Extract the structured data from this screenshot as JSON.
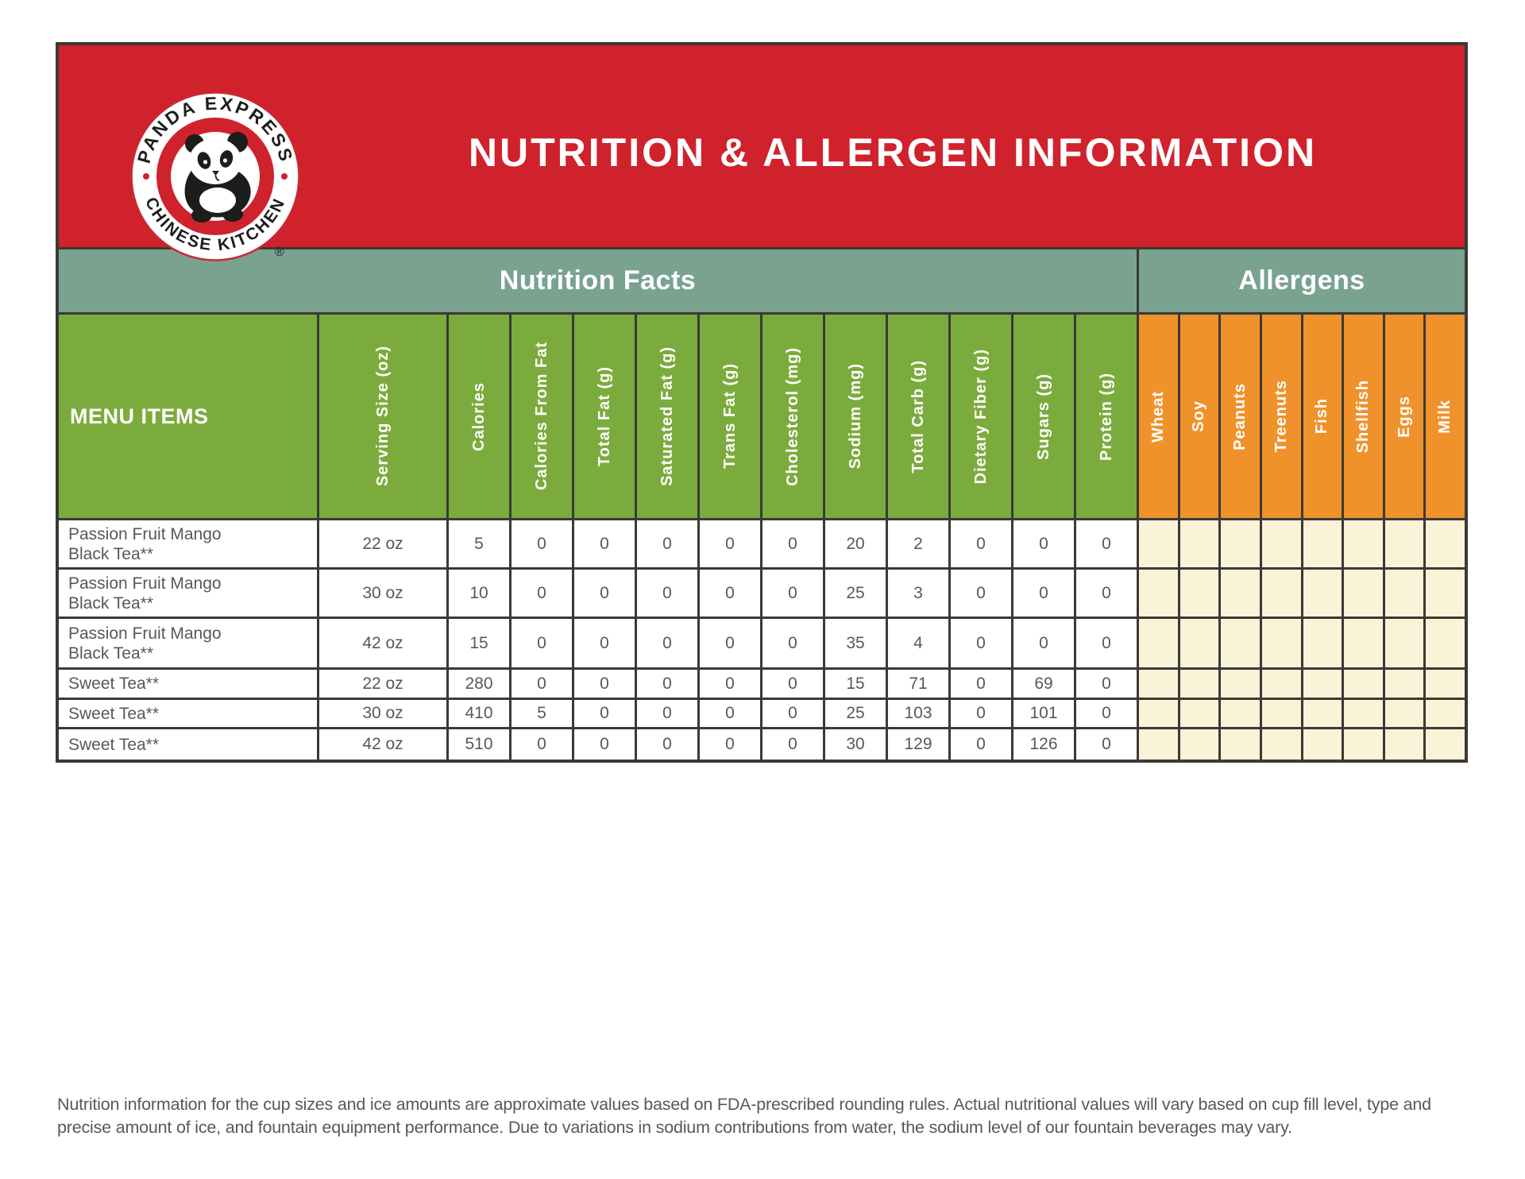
{
  "header": {
    "title": "NUTRITION & ALLERGEN INFORMATION"
  },
  "logo": {
    "top_text": "PANDA EXPRESS",
    "bottom_text": "CHINESE KITCHEN",
    "registered_mark": "®"
  },
  "sections": {
    "nutrition_label": "Nutrition Facts",
    "allergens_label": "Allergens"
  },
  "table": {
    "menu_items_header": "MENU ITEMS",
    "nutrition_columns": [
      "Serving Size (oz)",
      "Calories",
      "Calories From Fat",
      "Total Fat (g)",
      "Saturated Fat (g)",
      "Trans Fat (g)",
      "Cholesterol (mg)",
      "Sodium (mg)",
      "Total Carb (g)",
      "Dietary Fiber (g)",
      "Sugars (g)",
      "Protein (g)"
    ],
    "allergen_columns": [
      "Wheat",
      "Soy",
      "Peanuts",
      "Treenuts",
      "Fish",
      "Shellfish",
      "Eggs",
      "Milk"
    ],
    "rows": [
      {
        "name": "Passion Fruit Mango\nBlack Tea**",
        "values": [
          "22 oz",
          "5",
          "0",
          "0",
          "0",
          "0",
          "0",
          "20",
          "2",
          "0",
          "0",
          "0"
        ],
        "allergens": [
          "",
          "",
          "",
          "",
          "",
          "",
          "",
          ""
        ]
      },
      {
        "name": "Passion Fruit Mango\nBlack Tea**",
        "values": [
          "30 oz",
          "10",
          "0",
          "0",
          "0",
          "0",
          "0",
          "25",
          "3",
          "0",
          "0",
          "0"
        ],
        "allergens": [
          "",
          "",
          "",
          "",
          "",
          "",
          "",
          ""
        ]
      },
      {
        "name": "Passion Fruit Mango\nBlack Tea**",
        "values": [
          "42 oz",
          "15",
          "0",
          "0",
          "0",
          "0",
          "0",
          "35",
          "4",
          "0",
          "0",
          "0"
        ],
        "allergens": [
          "",
          "",
          "",
          "",
          "",
          "",
          "",
          ""
        ]
      },
      {
        "name": "Sweet Tea**",
        "values": [
          "22 oz",
          "280",
          "0",
          "0",
          "0",
          "0",
          "0",
          "15",
          "71",
          "0",
          "69",
          "0"
        ],
        "allergens": [
          "",
          "",
          "",
          "",
          "",
          "",
          "",
          ""
        ]
      },
      {
        "name": "Sweet Tea**",
        "values": [
          "30 oz",
          "410",
          "5",
          "0",
          "0",
          "0",
          "0",
          "25",
          "103",
          "0",
          "101",
          "0"
        ],
        "allergens": [
          "",
          "",
          "",
          "",
          "",
          "",
          "",
          ""
        ]
      },
      {
        "name": "Sweet Tea**",
        "values": [
          "42 oz",
          "510",
          "0",
          "0",
          "0",
          "0",
          "0",
          "30",
          "129",
          "0",
          "126",
          "0"
        ],
        "allergens": [
          "",
          "",
          "",
          "",
          "",
          "",
          "",
          ""
        ]
      }
    ]
  },
  "footer": {
    "disclaimer": "Nutrition information for the cup sizes and ice amounts are approximate values based on FDA-prescribed rounding rules. Actual nutritional values will vary based on cup fill level, type and precise amount of ice, and fountain equipment performance. Due to variations in sodium contributions from water, the sodium level of our fountain beverages may vary."
  },
  "colors": {
    "brand_red": "#D0222C",
    "band_teal": "#7AA291",
    "nutrition_green": "#7CAB3D",
    "allergen_orange": "#F0922B",
    "allergen_cell_cream": "#FAF3D8",
    "grid_border": "#3A3A35",
    "text_gray": "#57585C"
  }
}
